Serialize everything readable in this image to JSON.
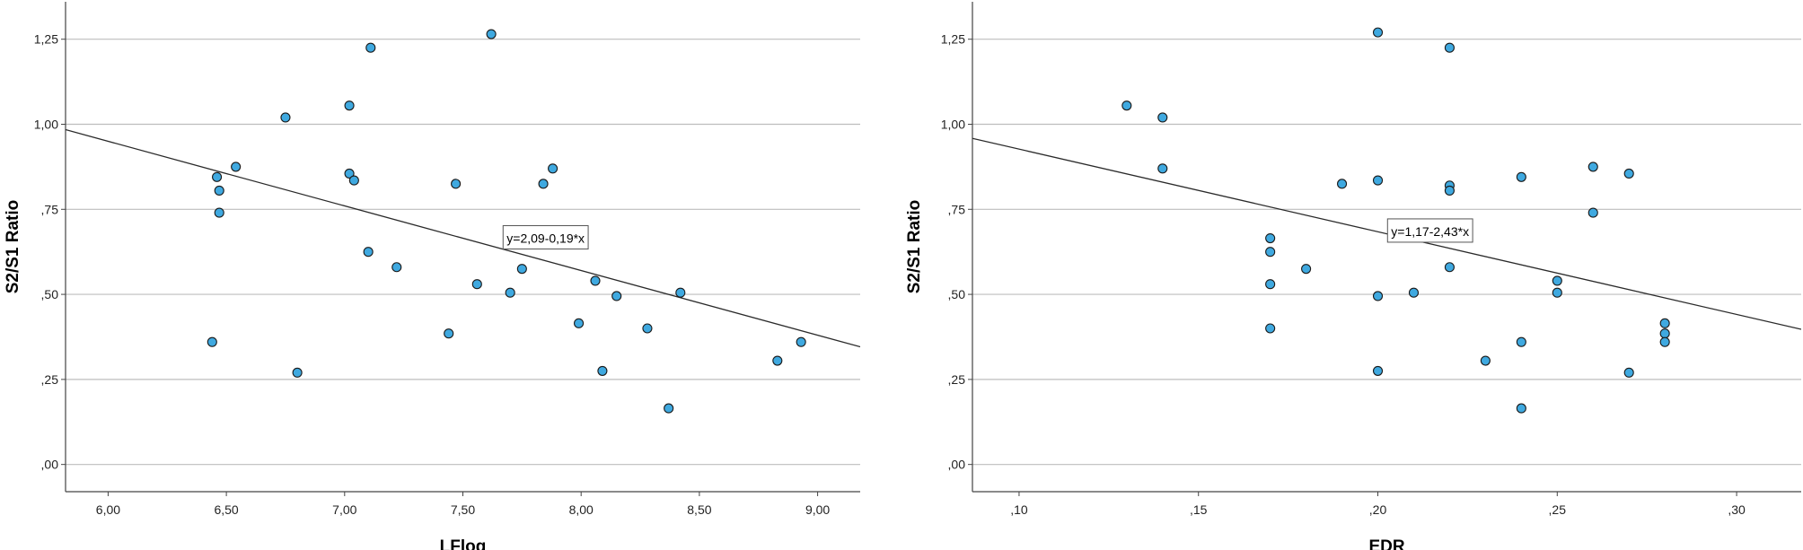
{
  "chart_data": [
    {
      "type": "scatter",
      "xlabel": "LFlog",
      "ylabel": "S2/S1 Ratio",
      "xlim": [
        5.82,
        9.18
      ],
      "ylim": [
        -0.08,
        1.36
      ],
      "x_ticks": [
        "6,00",
        "6,50",
        "7,00",
        "7,50",
        "8,00",
        "8,50",
        "9,00"
      ],
      "x_tick_values": [
        6.0,
        6.5,
        7.0,
        7.5,
        8.0,
        8.5,
        9.0
      ],
      "y_ticks": [
        ",00",
        ",25",
        ",50",
        ",75",
        "1,00",
        "1,25"
      ],
      "y_tick_values": [
        0.0,
        0.25,
        0.5,
        0.75,
        1.0,
        1.25
      ],
      "grid": "horizontal",
      "point_color": "#3fa9e0",
      "points": [
        {
          "x": 6.44,
          "y": 0.36
        },
        {
          "x": 6.46,
          "y": 0.845
        },
        {
          "x": 6.47,
          "y": 0.805
        },
        {
          "x": 6.47,
          "y": 0.74
        },
        {
          "x": 6.54,
          "y": 0.875
        },
        {
          "x": 6.75,
          "y": 1.02
        },
        {
          "x": 6.8,
          "y": 0.27
        },
        {
          "x": 7.02,
          "y": 1.055
        },
        {
          "x": 7.02,
          "y": 0.855
        },
        {
          "x": 7.04,
          "y": 0.835
        },
        {
          "x": 7.1,
          "y": 0.625
        },
        {
          "x": 7.11,
          "y": 1.225
        },
        {
          "x": 7.22,
          "y": 0.58
        },
        {
          "x": 7.44,
          "y": 0.385
        },
        {
          "x": 7.47,
          "y": 0.825
        },
        {
          "x": 7.56,
          "y": 0.53
        },
        {
          "x": 7.62,
          "y": 1.265
        },
        {
          "x": 7.7,
          "y": 0.505
        },
        {
          "x": 7.75,
          "y": 0.575
        },
        {
          "x": 7.84,
          "y": 0.825
        },
        {
          "x": 7.88,
          "y": 0.87
        },
        {
          "x": 7.99,
          "y": 0.415
        },
        {
          "x": 8.06,
          "y": 0.54
        },
        {
          "x": 8.09,
          "y": 0.275
        },
        {
          "x": 8.15,
          "y": 0.495
        },
        {
          "x": 8.28,
          "y": 0.4
        },
        {
          "x": 8.37,
          "y": 0.165
        },
        {
          "x": 8.42,
          "y": 0.505
        },
        {
          "x": 8.83,
          "y": 0.305
        },
        {
          "x": 8.93,
          "y": 0.36
        }
      ],
      "fit_line": {
        "intercept": 2.09,
        "slope": -0.19,
        "label": "y=2,09-0,19*x",
        "label_at": {
          "x": 7.67,
          "y": 0.665
        }
      }
    },
    {
      "type": "scatter",
      "xlabel": "EDR",
      "ylabel": "S2/S1 Ratio",
      "xlim": [
        0.087,
        0.318
      ],
      "ylim": [
        -0.08,
        1.36
      ],
      "x_ticks": [
        ",10",
        ",15",
        ",20",
        ",25",
        ",30"
      ],
      "x_tick_values": [
        0.1,
        0.15,
        0.2,
        0.25,
        0.3
      ],
      "y_ticks": [
        ",00",
        ",25",
        ",50",
        ",75",
        "1,00",
        "1,25"
      ],
      "y_tick_values": [
        0.0,
        0.25,
        0.5,
        0.75,
        1.0,
        1.25
      ],
      "grid": "horizontal",
      "point_color": "#3fa9e0",
      "points": [
        {
          "x": 0.13,
          "y": 1.055
        },
        {
          "x": 0.14,
          "y": 1.02
        },
        {
          "x": 0.14,
          "y": 0.87
        },
        {
          "x": 0.17,
          "y": 0.665
        },
        {
          "x": 0.17,
          "y": 0.625
        },
        {
          "x": 0.17,
          "y": 0.53
        },
        {
          "x": 0.17,
          "y": 0.4
        },
        {
          "x": 0.18,
          "y": 0.575
        },
        {
          "x": 0.19,
          "y": 0.825
        },
        {
          "x": 0.2,
          "y": 1.27
        },
        {
          "x": 0.2,
          "y": 0.835
        },
        {
          "x": 0.2,
          "y": 0.495
        },
        {
          "x": 0.2,
          "y": 0.275
        },
        {
          "x": 0.21,
          "y": 0.505
        },
        {
          "x": 0.22,
          "y": 1.225
        },
        {
          "x": 0.22,
          "y": 0.82
        },
        {
          "x": 0.22,
          "y": 0.805
        },
        {
          "x": 0.22,
          "y": 0.58
        },
        {
          "x": 0.23,
          "y": 0.305
        },
        {
          "x": 0.24,
          "y": 0.845
        },
        {
          "x": 0.24,
          "y": 0.36
        },
        {
          "x": 0.24,
          "y": 0.165
        },
        {
          "x": 0.25,
          "y": 0.54
        },
        {
          "x": 0.25,
          "y": 0.505
        },
        {
          "x": 0.26,
          "y": 0.875
        },
        {
          "x": 0.26,
          "y": 0.74
        },
        {
          "x": 0.27,
          "y": 0.855
        },
        {
          "x": 0.27,
          "y": 0.27
        },
        {
          "x": 0.28,
          "y": 0.415
        },
        {
          "x": 0.28,
          "y": 0.385
        },
        {
          "x": 0.28,
          "y": 0.36
        }
      ],
      "fit_line": {
        "intercept": 1.17,
        "slope": -2.43,
        "label": "y=1,17-2,43*x",
        "label_at": {
          "x": 0.2027,
          "y": 0.685
        }
      }
    }
  ]
}
